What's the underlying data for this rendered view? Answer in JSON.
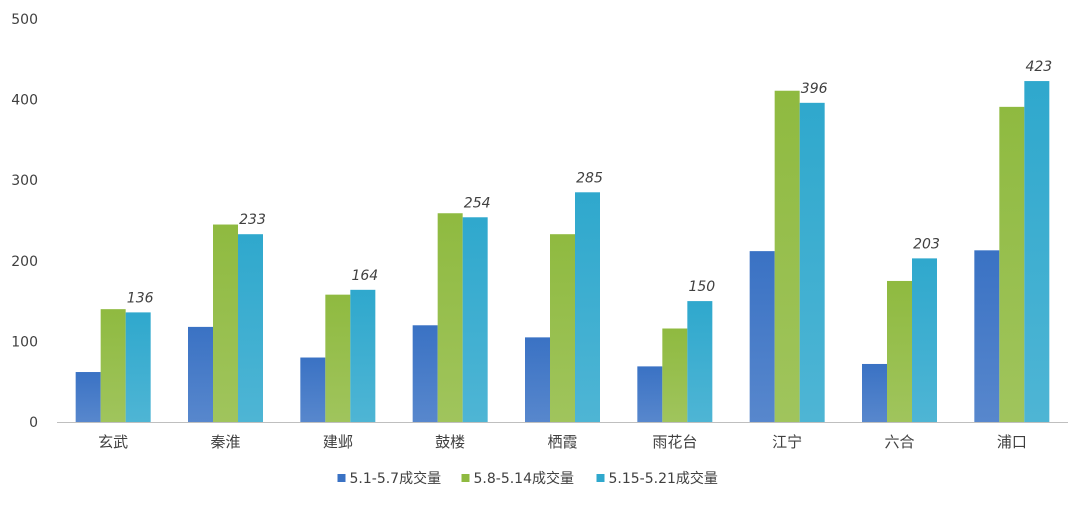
{
  "chart_data": {
    "type": "bar",
    "categories": [
      "玄武",
      "秦淮",
      "建邺",
      "鼓楼",
      "栖霞",
      "雨花台",
      "江宁",
      "六合",
      "浦口"
    ],
    "series": [
      {
        "name": "5.1-5.7成交量",
        "values": [
          62,
          118,
          80,
          120,
          105,
          69,
          212,
          72,
          213
        ],
        "color": "#3a72c4"
      },
      {
        "name": "5.8-5.14成交量",
        "values": [
          140,
          245,
          158,
          259,
          233,
          116,
          411,
          175,
          391
        ],
        "color": "#8fba40"
      },
      {
        "name": "5.15-5.21成交量",
        "values": [
          136,
          233,
          164,
          254,
          285,
          150,
          396,
          203,
          423
        ],
        "color": "#2fa8cd"
      }
    ],
    "data_labels_series": 2,
    "ylim": [
      0,
      500
    ],
    "yticks": [
      0,
      100,
      200,
      300,
      400,
      500
    ],
    "legend_position": "bottom",
    "grid": false
  }
}
